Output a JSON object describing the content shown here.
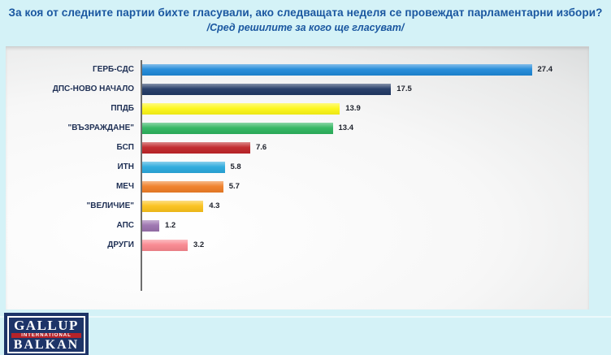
{
  "header": {
    "title": "За коя от следните партии бихте гласували, ако следващата неделя се провеждат парламентарни избори?",
    "subtitle": "/Сред решилите за кого ще гласуват/"
  },
  "chart_data": {
    "type": "bar",
    "orientation": "horizontal",
    "title": "За коя от следните партии бихте гласували, ако следващата неделя се провеждат парламентарни избори?",
    "subtitle": "/Сред решилите за кого ще гласуват/",
    "categories": [
      "ГЕРБ-СДС",
      "ДПС-НОВО НАЧАЛО",
      "ППДБ",
      "\"ВЪЗРАЖДАНЕ\"",
      "БСП",
      "ИТН",
      "МЕЧ",
      "\"ВЕЛИЧИЕ\"",
      "АПС",
      "ДРУГИ"
    ],
    "values": [
      27.4,
      17.5,
      13.9,
      13.4,
      7.6,
      5.8,
      5.7,
      4.3,
      1.2,
      3.2
    ],
    "bar_colors": [
      "#1e88d8",
      "#203864",
      "#fdf716",
      "#2db45e",
      "#c02428",
      "#29a9dd",
      "#f07e26",
      "#fbc21a",
      "#9b72ae",
      "#f9868e"
    ],
    "xlabel": "",
    "ylabel": "",
    "xlim": [
      0,
      30
    ],
    "grid": false,
    "legend": false,
    "value_labels": true,
    "unit": "%"
  },
  "logo": {
    "line1": "GALLUP",
    "line2": "INTERNATIONAL",
    "line3": "BALKAN"
  },
  "colors": {
    "background": "#d4f2f7",
    "title_text": "#1a57a0",
    "axis": "#6e6e6e",
    "category_text": "#1e2f54",
    "value_text": "#20242e",
    "logo_background": "#1d3468",
    "logo_band": "#b5232a"
  }
}
